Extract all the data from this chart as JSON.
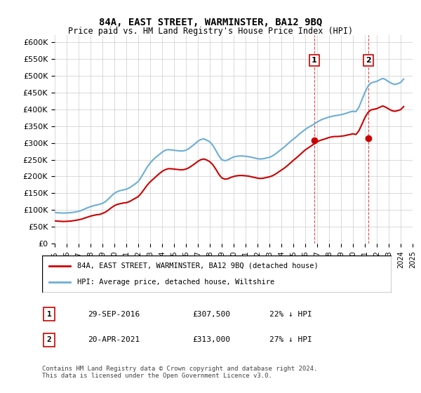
{
  "title": "84A, EAST STREET, WARMINSTER, BA12 9BQ",
  "subtitle": "Price paid vs. HM Land Registry's House Price Index (HPI)",
  "xlabel": "",
  "ylabel": "",
  "ylim": [
    0,
    620000
  ],
  "yticks": [
    0,
    50000,
    100000,
    150000,
    200000,
    250000,
    300000,
    350000,
    400000,
    450000,
    500000,
    550000,
    600000
  ],
  "ytick_labels": [
    "£0",
    "£50K",
    "£100K",
    "£150K",
    "£200K",
    "£250K",
    "£300K",
    "£350K",
    "£400K",
    "£450K",
    "£500K",
    "£550K",
    "£600K"
  ],
  "hpi_color": "#6baed6",
  "price_color": "#cc0000",
  "dashed_color": "#cc0000",
  "sale1_date": 2016.75,
  "sale1_price": 307500,
  "sale1_label": "1",
  "sale2_date": 2021.3,
  "sale2_price": 313000,
  "sale2_label": "2",
  "legend_entries": [
    "84A, EAST STREET, WARMINSTER, BA12 9BQ (detached house)",
    "HPI: Average price, detached house, Wiltshire"
  ],
  "table_rows": [
    [
      "1",
      "29-SEP-2016",
      "£307,500",
      "22% ↓ HPI"
    ],
    [
      "2",
      "20-APR-2021",
      "£313,000",
      "27% ↓ HPI"
    ]
  ],
  "footnote": "Contains HM Land Registry data © Crown copyright and database right 2024.\nThis data is licensed under the Open Government Licence v3.0.",
  "hpi_data": {
    "years": [
      1995.0,
      1995.25,
      1995.5,
      1995.75,
      1996.0,
      1996.25,
      1996.5,
      1996.75,
      1997.0,
      1997.25,
      1997.5,
      1997.75,
      1998.0,
      1998.25,
      1998.5,
      1998.75,
      1999.0,
      1999.25,
      1999.5,
      1999.75,
      2000.0,
      2000.25,
      2000.5,
      2000.75,
      2001.0,
      2001.25,
      2001.5,
      2001.75,
      2002.0,
      2002.25,
      2002.5,
      2002.75,
      2003.0,
      2003.25,
      2003.5,
      2003.75,
      2004.0,
      2004.25,
      2004.5,
      2004.75,
      2005.0,
      2005.25,
      2005.5,
      2005.75,
      2006.0,
      2006.25,
      2006.5,
      2006.75,
      2007.0,
      2007.25,
      2007.5,
      2007.75,
      2008.0,
      2008.25,
      2008.5,
      2008.75,
      2009.0,
      2009.25,
      2009.5,
      2009.75,
      2010.0,
      2010.25,
      2010.5,
      2010.75,
      2011.0,
      2011.25,
      2011.5,
      2011.75,
      2012.0,
      2012.25,
      2012.5,
      2012.75,
      2013.0,
      2013.25,
      2013.5,
      2013.75,
      2014.0,
      2014.25,
      2014.5,
      2014.75,
      2015.0,
      2015.25,
      2015.5,
      2015.75,
      2016.0,
      2016.25,
      2016.5,
      2016.75,
      2017.0,
      2017.25,
      2017.5,
      2017.75,
      2018.0,
      2018.25,
      2018.5,
      2018.75,
      2019.0,
      2019.25,
      2019.5,
      2019.75,
      2020.0,
      2020.25,
      2020.5,
      2020.75,
      2021.0,
      2021.25,
      2021.5,
      2021.75,
      2022.0,
      2022.25,
      2022.5,
      2022.75,
      2023.0,
      2023.25,
      2023.5,
      2023.75,
      2024.0,
      2024.25
    ],
    "values": [
      93000,
      92000,
      91500,
      91000,
      91500,
      92000,
      93000,
      94500,
      96000,
      99000,
      103000,
      107000,
      110000,
      113000,
      115000,
      117000,
      120000,
      125000,
      133000,
      142000,
      150000,
      155000,
      158000,
      160000,
      162000,
      166000,
      172000,
      178000,
      185000,
      198000,
      213000,
      228000,
      240000,
      250000,
      258000,
      265000,
      272000,
      278000,
      280000,
      279000,
      278000,
      277000,
      276000,
      276000,
      278000,
      283000,
      290000,
      297000,
      305000,
      310000,
      312000,
      308000,
      303000,
      293000,
      278000,
      262000,
      250000,
      247000,
      249000,
      254000,
      258000,
      260000,
      261000,
      261000,
      260000,
      259000,
      257000,
      255000,
      253000,
      252000,
      253000,
      255000,
      257000,
      261000,
      267000,
      274000,
      281000,
      288000,
      296000,
      304000,
      311000,
      318000,
      326000,
      333000,
      340000,
      346000,
      351000,
      356000,
      362000,
      367000,
      371000,
      374000,
      377000,
      379000,
      381000,
      382000,
      384000,
      386000,
      389000,
      392000,
      394000,
      393000,
      406000,
      428000,
      450000,
      468000,
      478000,
      481000,
      483000,
      488000,
      492000,
      488000,
      482000,
      477000,
      474000,
      476000,
      480000,
      490000
    ]
  },
  "price_data": {
    "years": [
      1995.0,
      1995.25,
      1995.5,
      1995.75,
      1996.0,
      1996.25,
      1996.5,
      1996.75,
      1997.0,
      1997.25,
      1997.5,
      1997.75,
      1998.0,
      1998.25,
      1998.5,
      1998.75,
      1999.0,
      1999.25,
      1999.5,
      1999.75,
      2000.0,
      2000.25,
      2000.5,
      2000.75,
      2001.0,
      2001.25,
      2001.5,
      2001.75,
      2002.0,
      2002.25,
      2002.5,
      2002.75,
      2003.0,
      2003.25,
      2003.5,
      2003.75,
      2004.0,
      2004.25,
      2004.5,
      2004.75,
      2005.0,
      2005.25,
      2005.5,
      2005.75,
      2006.0,
      2006.25,
      2006.5,
      2006.75,
      2007.0,
      2007.25,
      2007.5,
      2007.75,
      2008.0,
      2008.25,
      2008.5,
      2008.75,
      2009.0,
      2009.25,
      2009.5,
      2009.75,
      2010.0,
      2010.25,
      2010.5,
      2010.75,
      2011.0,
      2011.25,
      2011.5,
      2011.75,
      2012.0,
      2012.25,
      2012.5,
      2012.75,
      2013.0,
      2013.25,
      2013.5,
      2013.75,
      2014.0,
      2014.25,
      2014.5,
      2014.75,
      2015.0,
      2015.25,
      2015.5,
      2015.75,
      2016.0,
      2016.25,
      2016.5,
      2016.75,
      2017.0,
      2017.25,
      2017.5,
      2017.75,
      2018.0,
      2018.25,
      2018.5,
      2018.75,
      2019.0,
      2019.25,
      2019.5,
      2019.75,
      2020.0,
      2020.25,
      2020.5,
      2020.75,
      2021.0,
      2021.25,
      2021.5,
      2021.75,
      2022.0,
      2022.25,
      2022.5,
      2022.75,
      2023.0,
      2023.25,
      2023.5,
      2023.75,
      2024.0,
      2024.25
    ],
    "values": [
      68000,
      67000,
      66500,
      66000,
      66500,
      67000,
      68000,
      69500,
      71000,
      73000,
      76000,
      79000,
      82000,
      84000,
      86000,
      87000,
      90000,
      94000,
      100000,
      107000,
      113000,
      117000,
      119000,
      121000,
      122000,
      125000,
      130000,
      135000,
      140000,
      150000,
      162000,
      174000,
      184000,
      192000,
      200000,
      208000,
      215000,
      220000,
      223000,
      223000,
      222000,
      221000,
      220000,
      220000,
      222000,
      226000,
      232000,
      238000,
      245000,
      250000,
      252000,
      249000,
      244000,
      235000,
      222000,
      207000,
      196000,
      192000,
      193000,
      197000,
      200000,
      202000,
      203000,
      203000,
      202000,
      201000,
      199000,
      197000,
      195000,
      194000,
      195000,
      197000,
      199000,
      202000,
      207000,
      213000,
      219000,
      225000,
      232000,
      240000,
      248000,
      255000,
      263000,
      271000,
      279000,
      285000,
      291000,
      297000,
      303000,
      307500,
      310000,
      313000,
      316000,
      318000,
      319000,
      319000,
      320000,
      321000,
      323000,
      325000,
      327000,
      325000,
      336000,
      355000,
      375000,
      390000,
      398000,
      400000,
      402000,
      406000,
      410000,
      406000,
      401000,
      396000,
      394000,
      396000,
      399000,
      408000
    ]
  }
}
